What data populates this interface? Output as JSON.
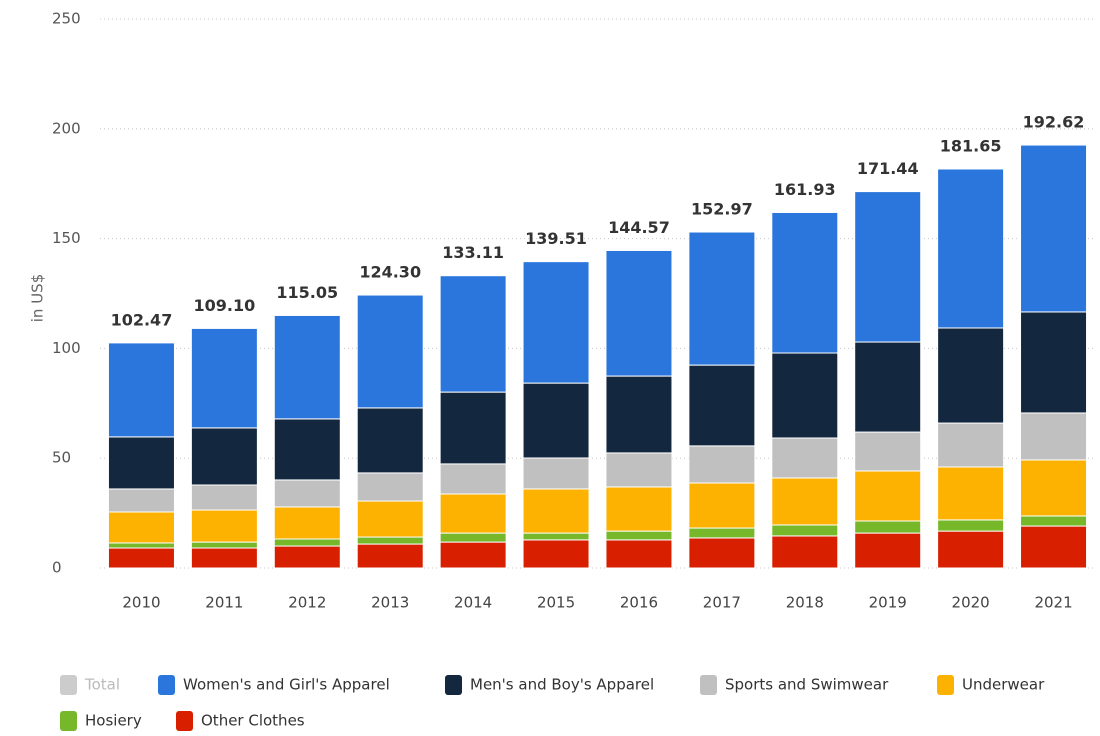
{
  "chart_data": {
    "type": "stacked_bar",
    "y_label": "in US$",
    "categories": [
      "2010",
      "2011",
      "2012",
      "2013",
      "2014",
      "2015",
      "2016",
      "2017",
      "2018",
      "2019",
      "2020",
      "2021"
    ],
    "total": {
      "name": "Total",
      "color": "#cccccc",
      "values": [
        102.47,
        109.1,
        115.05,
        124.3,
        133.11,
        139.51,
        144.57,
        152.97,
        161.93,
        171.44,
        181.65,
        192.62
      ],
      "value_labels": [
        "102.47",
        "109.10",
        "115.05",
        "124.30",
        "133.11",
        "139.51",
        "144.57",
        "152.97",
        "161.93",
        "171.44",
        "181.65",
        "192.62"
      ]
    },
    "series": [
      {
        "name": "Women's and Girl's Apparel",
        "color": "#2a76dd",
        "values": [
          42.8,
          45.3,
          47.1,
          51.4,
          53.0,
          55.3,
          57.2,
          60.6,
          64.0,
          68.5,
          72.4,
          76.0
        ]
      },
      {
        "name": "Men's and Boy's Apparel",
        "color": "#13273f",
        "values": [
          23.7,
          26.0,
          27.8,
          29.6,
          32.7,
          34.1,
          35.0,
          36.8,
          38.7,
          41.0,
          43.3,
          46.0
        ]
      },
      {
        "name": "Sports and Swimwear",
        "color": "#c0c0c0",
        "values": [
          10.5,
          11.4,
          12.3,
          12.8,
          13.7,
          14.1,
          15.5,
          16.9,
          18.2,
          17.7,
          20.0,
          21.4
        ]
      },
      {
        "name": "Underwear",
        "color": "#fdb100",
        "values": [
          14.1,
          14.6,
          14.6,
          16.4,
          17.8,
          20.1,
          20.1,
          20.5,
          21.4,
          22.8,
          24.1,
          25.5
        ]
      },
      {
        "name": "Hosiery",
        "color": "#76b82a",
        "values": [
          2.3,
          2.7,
          3.2,
          3.2,
          4.1,
          3.1,
          4.0,
          4.5,
          5.0,
          5.5,
          5.1,
          4.6
        ]
      },
      {
        "name": "Other Clothes",
        "color": "#d81f00",
        "values": [
          9.1,
          9.1,
          10.0,
          10.9,
          11.8,
          12.8,
          12.8,
          13.7,
          14.6,
          15.9,
          16.8,
          19.1
        ]
      }
    ],
    "ylim": [
      0,
      250
    ],
    "yticks": [
      0,
      50,
      100,
      150,
      200,
      250
    ],
    "grid": true
  }
}
